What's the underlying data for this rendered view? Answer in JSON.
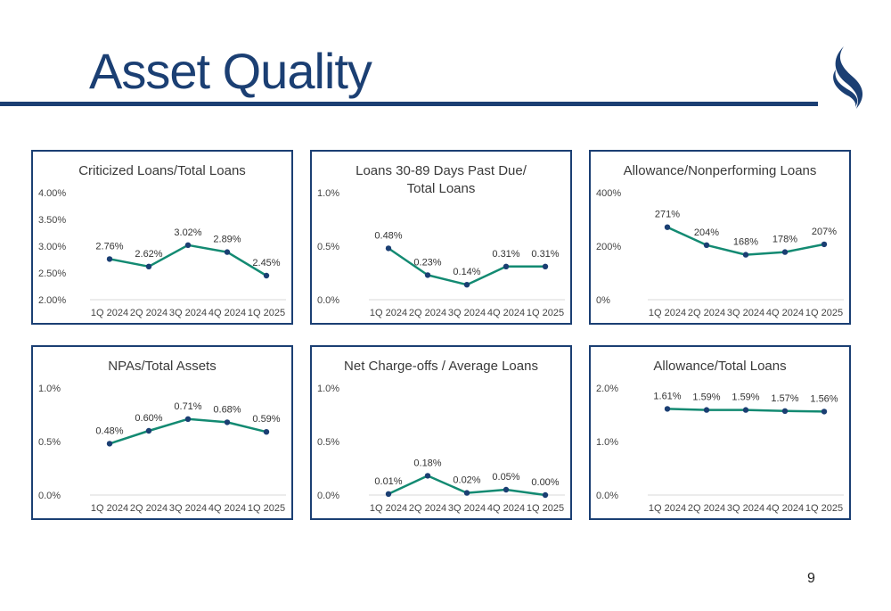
{
  "slide": {
    "title": "Asset Quality",
    "page_number": "9"
  },
  "colors": {
    "brand_navy": "#1b3f73",
    "line_teal": "#138a72",
    "marker_navy": "#1b3f73",
    "grid": "#d9d9d9"
  },
  "chart_data": [
    {
      "type": "line",
      "title": "Criticized Loans/Total Loans",
      "categories": [
        "1Q 2024",
        "2Q 2024",
        "3Q 2024",
        "4Q 2024",
        "1Q 2025"
      ],
      "values": [
        2.76,
        2.62,
        3.02,
        2.89,
        2.45
      ],
      "data_labels": [
        "2.76%",
        "2.62%",
        "3.02%",
        "2.89%",
        "2.45%"
      ],
      "ylim": [
        2.0,
        4.0
      ],
      "yticks": [
        2.0,
        2.5,
        3.0,
        3.5,
        4.0
      ],
      "ytick_labels": [
        "2.00%",
        "2.50%",
        "3.00%",
        "3.50%",
        "4.00%"
      ],
      "grid": false
    },
    {
      "type": "line",
      "title": "Loans 30-89 Days Past Due/ Total Loans",
      "title_lines": [
        "Loans 30-89 Days Past Due/",
        "Total Loans"
      ],
      "categories": [
        "1Q 2024",
        "2Q 2024",
        "3Q 2024",
        "4Q 2024",
        "1Q 2025"
      ],
      "values": [
        0.48,
        0.23,
        0.14,
        0.31,
        0.31
      ],
      "data_labels": [
        "0.48%",
        "0.23%",
        "0.14%",
        "0.31%",
        "0.31%"
      ],
      "ylim": [
        0.0,
        1.0
      ],
      "yticks": [
        0.0,
        0.5,
        1.0
      ],
      "ytick_labels": [
        "0.0%",
        "0.5%",
        "1.0%"
      ],
      "grid": false
    },
    {
      "type": "line",
      "title": "Allowance/Nonperforming Loans",
      "categories": [
        "1Q 2024",
        "2Q 2024",
        "3Q 2024",
        "4Q 2024",
        "1Q 2025"
      ],
      "values": [
        271,
        204,
        168,
        178,
        207
      ],
      "data_labels": [
        "271%",
        "204%",
        "168%",
        "178%",
        "207%"
      ],
      "ylim": [
        0,
        400
      ],
      "yticks": [
        0,
        200,
        400
      ],
      "ytick_labels": [
        "0%",
        "200%",
        "400%"
      ],
      "grid": false
    },
    {
      "type": "line",
      "title": "NPAs/Total Assets",
      "categories": [
        "1Q 2024",
        "2Q 2024",
        "3Q 2024",
        "4Q 2024",
        "1Q 2025"
      ],
      "values": [
        0.48,
        0.6,
        0.71,
        0.68,
        0.59
      ],
      "data_labels": [
        "0.48%",
        "0.60%",
        "0.71%",
        "0.68%",
        "0.59%"
      ],
      "ylim": [
        0.0,
        1.0
      ],
      "yticks": [
        0.0,
        0.5,
        1.0
      ],
      "ytick_labels": [
        "0.0%",
        "0.5%",
        "1.0%"
      ],
      "grid": false
    },
    {
      "type": "line",
      "title": "Net Charge-offs / Average Loans",
      "categories": [
        "1Q 2024",
        "2Q 2024",
        "3Q 2024",
        "4Q 2024",
        "1Q 2025"
      ],
      "values": [
        0.01,
        0.18,
        0.02,
        0.05,
        0.0
      ],
      "data_labels": [
        "0.01%",
        "0.18%",
        "0.02%",
        "0.05%",
        "0.00%"
      ],
      "ylim": [
        0.0,
        1.0
      ],
      "yticks": [
        0.0,
        0.5,
        1.0
      ],
      "ytick_labels": [
        "0.0%",
        "0.5%",
        "1.0%"
      ],
      "grid": false
    },
    {
      "type": "line",
      "title": "Allowance/Total Loans",
      "categories": [
        "1Q 2024",
        "2Q 2024",
        "3Q 2024",
        "4Q 2024",
        "1Q 2025"
      ],
      "values": [
        1.61,
        1.59,
        1.59,
        1.57,
        1.56
      ],
      "data_labels": [
        "1.61%",
        "1.59%",
        "1.59%",
        "1.57%",
        "1.56%"
      ],
      "ylim": [
        0.0,
        2.0
      ],
      "yticks": [
        0.0,
        1.0,
        2.0
      ],
      "ytick_labels": [
        "0.0%",
        "1.0%",
        "2.0%"
      ],
      "grid": false
    }
  ]
}
